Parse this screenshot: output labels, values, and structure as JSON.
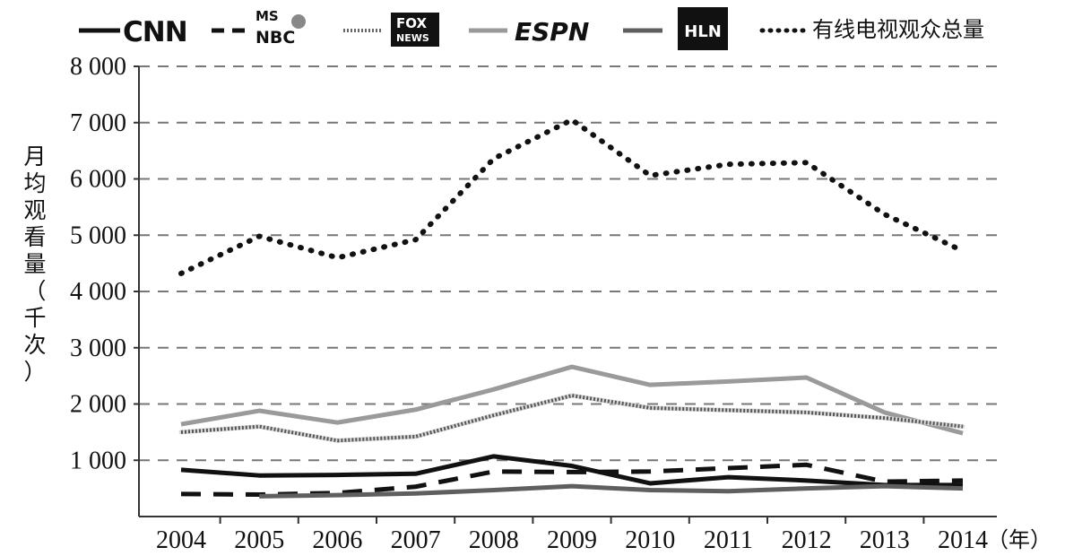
{
  "chart_data": {
    "type": "line",
    "title": "",
    "xlabel": "",
    "ylabel": "月均观看量（千次）",
    "x_unit_label": "（年）",
    "categories": [
      "2004",
      "2005",
      "2006",
      "2007",
      "2008",
      "2009",
      "2010",
      "2011",
      "2012",
      "2013",
      "2014"
    ],
    "ylim": [
      0,
      8000
    ],
    "yticks": [
      {
        "value": 1000,
        "label": "1 000"
      },
      {
        "value": 2000,
        "label": "2 000"
      },
      {
        "value": 3000,
        "label": "3 000"
      },
      {
        "value": 4000,
        "label": "4 000"
      },
      {
        "value": 5000,
        "label": "5 000"
      },
      {
        "value": 6000,
        "label": "6 000"
      },
      {
        "value": 7000,
        "label": "7 000"
      },
      {
        "value": 8000,
        "label": "8 000"
      }
    ],
    "grid": "horizontal dashed",
    "legend_position": "top",
    "series": [
      {
        "name": "CNN",
        "legend_type": "logo",
        "stroke": "#111111",
        "style": "solid",
        "width": 5,
        "values": [
          830,
          730,
          740,
          760,
          1070,
          900,
          590,
          700,
          640,
          560,
          560
        ]
      },
      {
        "name": "MSNBC",
        "legend_type": "logo",
        "stroke": "#111111",
        "style": "dashed",
        "width": 5,
        "values": [
          400,
          390,
          420,
          530,
          800,
          790,
          800,
          860,
          920,
          620,
          640
        ]
      },
      {
        "name": "FOX NEWS",
        "legend_type": "logo",
        "stroke": "#555555",
        "style": "hatched",
        "width": 5,
        "values": [
          1500,
          1600,
          1350,
          1420,
          1800,
          2150,
          1930,
          1890,
          1850,
          1750,
          1600
        ]
      },
      {
        "name": "ESPN",
        "legend_type": "logo",
        "stroke": "#9a9a9a",
        "style": "solid",
        "width": 5,
        "values": [
          1640,
          1880,
          1670,
          1900,
          2260,
          2660,
          2340,
          2400,
          2470,
          1850,
          1480
        ]
      },
      {
        "name": "HLN",
        "legend_type": "logo",
        "stroke": "#5f5f5f",
        "style": "solid",
        "width": 5,
        "values": [
          null,
          360,
          380,
          410,
          470,
          540,
          470,
          450,
          500,
          540,
          500
        ]
      },
      {
        "name": "有线电视观众总量",
        "legend_type": "text",
        "stroke": "#111111",
        "style": "dotted",
        "width": 6,
        "values": [
          4320,
          4980,
          4600,
          4920,
          6360,
          7050,
          6060,
          6260,
          6290,
          5370,
          4720
        ]
      }
    ]
  }
}
